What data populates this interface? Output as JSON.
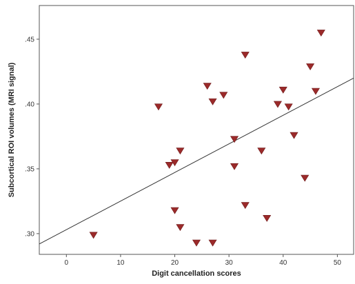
{
  "chart_data": {
    "type": "scatter",
    "xlabel": "Digit cancellation scores",
    "ylabel": "Subcortical ROI volumes (MRI signal)",
    "xlim": [
      -5,
      53
    ],
    "ylim": [
      0.284,
      0.476
    ],
    "x_ticks": [
      0,
      10,
      20,
      30,
      40,
      50
    ],
    "x_tick_labels": [
      "0",
      "10",
      "20",
      "30",
      "40",
      "50"
    ],
    "y_ticks": [
      0.3,
      0.35,
      0.4,
      0.45
    ],
    "y_tick_labels": [
      ".30",
      ".35",
      ".40",
      ".45"
    ],
    "grid": false,
    "marker": "triangle-down",
    "marker_color": "#9b2a2a",
    "line_color": "#333333",
    "points": [
      {
        "x": 5,
        "y": 0.299
      },
      {
        "x": 17,
        "y": 0.398
      },
      {
        "x": 19,
        "y": 0.353
      },
      {
        "x": 20,
        "y": 0.355
      },
      {
        "x": 20,
        "y": 0.318
      },
      {
        "x": 21,
        "y": 0.364
      },
      {
        "x": 21,
        "y": 0.305
      },
      {
        "x": 24,
        "y": 0.293
      },
      {
        "x": 26,
        "y": 0.414
      },
      {
        "x": 27,
        "y": 0.402
      },
      {
        "x": 27,
        "y": 0.293
      },
      {
        "x": 29,
        "y": 0.407
      },
      {
        "x": 31,
        "y": 0.373
      },
      {
        "x": 31,
        "y": 0.352
      },
      {
        "x": 33,
        "y": 0.438
      },
      {
        "x": 33,
        "y": 0.322
      },
      {
        "x": 36,
        "y": 0.364
      },
      {
        "x": 37,
        "y": 0.312
      },
      {
        "x": 39,
        "y": 0.4
      },
      {
        "x": 40,
        "y": 0.411
      },
      {
        "x": 41,
        "y": 0.398
      },
      {
        "x": 42,
        "y": 0.376
      },
      {
        "x": 44,
        "y": 0.343
      },
      {
        "x": 45,
        "y": 0.429
      },
      {
        "x": 46,
        "y": 0.41
      },
      {
        "x": 47,
        "y": 0.455
      }
    ],
    "fit_line": {
      "x": [
        -5,
        53
      ],
      "y": [
        0.292,
        0.42
      ]
    }
  }
}
